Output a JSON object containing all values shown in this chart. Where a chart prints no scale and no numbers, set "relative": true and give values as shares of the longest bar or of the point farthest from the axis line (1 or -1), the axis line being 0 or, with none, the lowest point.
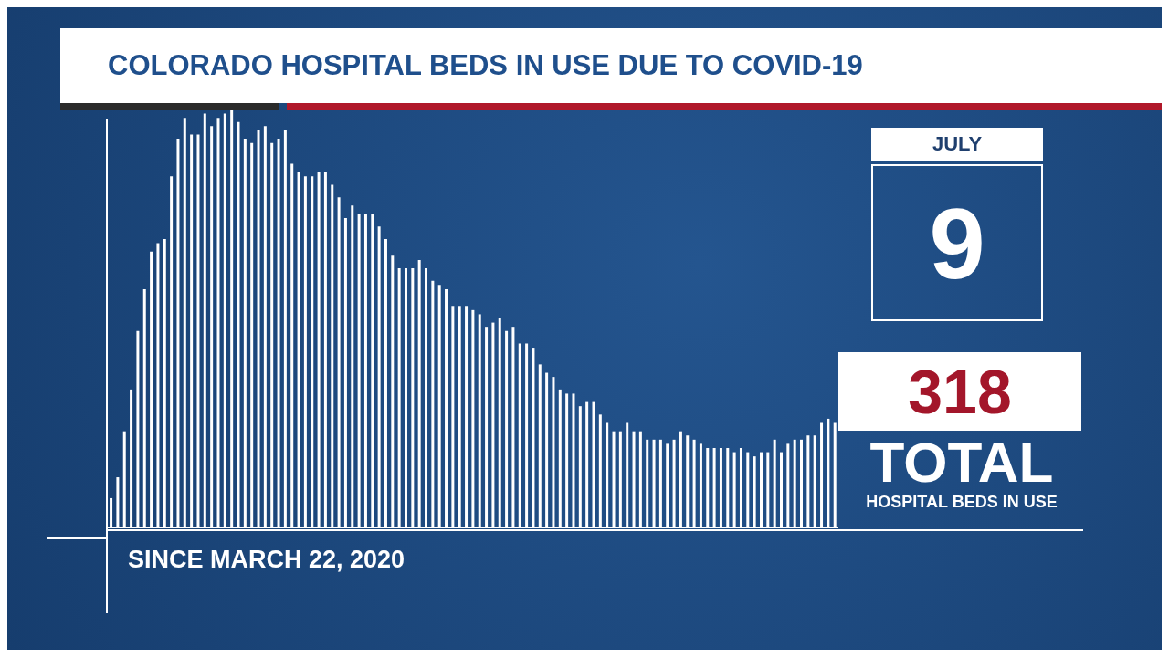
{
  "chart_data": {
    "type": "bar",
    "title": "COLORADO HOSPITAL BEDS IN USE DUE TO COVID-19",
    "xlabel": "SINCE MARCH 22, 2020",
    "relative": true,
    "color": "#ffffff",
    "categories": [
      null,
      null,
      null,
      null,
      null,
      null,
      null,
      null,
      null,
      null,
      null,
      null,
      null,
      null,
      null,
      null,
      null,
      null,
      null,
      null,
      null,
      null,
      null,
      null,
      null,
      null,
      null,
      null,
      null,
      null,
      null,
      null,
      null,
      null,
      null,
      null,
      null,
      null,
      null,
      null,
      null,
      null,
      null,
      null,
      null,
      null,
      null,
      null,
      null,
      null,
      null,
      null,
      null,
      null,
      null,
      null,
      null,
      null,
      null,
      null,
      null,
      null,
      null,
      null,
      null,
      null,
      null,
      null,
      null,
      null,
      null,
      null,
      null,
      null,
      null,
      null,
      null,
      null,
      null,
      null,
      null,
      null,
      null,
      null,
      null,
      null,
      null,
      null,
      null,
      null,
      null,
      null,
      null,
      null,
      null,
      null,
      null,
      null,
      null,
      null,
      null,
      null,
      null,
      null,
      null,
      null,
      null,
      null,
      null
    ],
    "values": [
      0.07,
      0.12,
      0.23,
      0.33,
      0.47,
      0.57,
      0.66,
      0.68,
      0.69,
      0.84,
      0.93,
      0.98,
      0.94,
      0.94,
      0.99,
      0.96,
      0.98,
      0.99,
      1,
      0.97,
      0.93,
      0.92,
      0.95,
      0.96,
      0.92,
      0.93,
      0.95,
      0.87,
      0.85,
      0.84,
      0.84,
      0.85,
      0.85,
      0.82,
      0.79,
      0.74,
      0.77,
      0.75,
      0.75,
      0.75,
      0.72,
      0.69,
      0.65,
      0.62,
      0.62,
      0.62,
      0.64,
      0.62,
      0.59,
      0.58,
      0.57,
      0.53,
      0.53,
      0.53,
      0.52,
      0.51,
      0.48,
      0.49,
      0.5,
      0.47,
      0.48,
      0.44,
      0.44,
      0.43,
      0.39,
      0.37,
      0.36,
      0.33,
      0.32,
      0.32,
      0.29,
      0.3,
      0.3,
      0.27,
      0.25,
      0.23,
      0.23,
      0.25,
      0.23,
      0.23,
      0.21,
      0.21,
      0.21,
      0.2,
      0.21,
      0.23,
      0.22,
      0.21,
      0.2,
      0.19,
      0.19,
      0.19,
      0.19,
      0.18,
      0.19,
      0.18,
      0.17,
      0.18,
      0.18,
      0.21,
      0.18,
      0.2,
      0.21,
      0.21,
      0.22,
      0.22,
      0.25,
      0.26,
      0.25
    ],
    "annotations": [
      "JULY",
      "9",
      "318",
      "TOTAL",
      "HOSPITAL BEDS IN USE"
    ]
  }
}
